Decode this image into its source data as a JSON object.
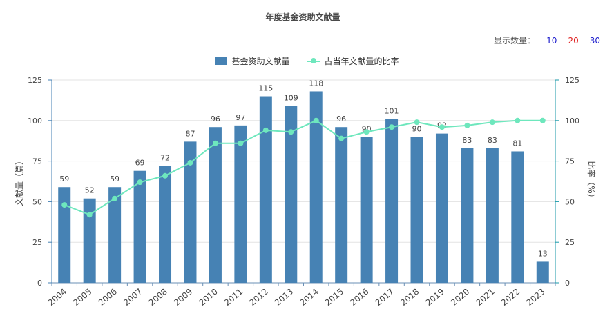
{
  "title": "年度基金资助文献量",
  "display_count": {
    "label": "显示数量：",
    "options": [
      {
        "label": "10",
        "color": "#1c1ccc"
      },
      {
        "label": "20",
        "color": "#e02020"
      },
      {
        "label": "30",
        "color": "#1c1ccc"
      }
    ]
  },
  "legend": {
    "bar_label": "基金资助文献量",
    "line_label": "占当年文献量的比率"
  },
  "colors": {
    "bar": "#4682b4",
    "line": "#6ee7bd",
    "axis_left": "#4682b4",
    "axis_right": "#1b9aaa",
    "grid": "#e3e3e3"
  },
  "chart_data": {
    "type": "bar",
    "title": "年度基金资助文献量",
    "categories": [
      "2004",
      "2005",
      "2006",
      "2007",
      "2008",
      "2009",
      "2010",
      "2011",
      "2012",
      "2013",
      "2014",
      "2015",
      "2016",
      "2017",
      "2018",
      "2019",
      "2020",
      "2021",
      "2022",
      "2023"
    ],
    "series": [
      {
        "name": "基金资助文献量",
        "type": "bar",
        "values": [
          59,
          52,
          59,
          69,
          72,
          87,
          96,
          97,
          115,
          109,
          118,
          96,
          90,
          101,
          90,
          92,
          83,
          83,
          81,
          13
        ]
      },
      {
        "name": "占当年文献量的比率",
        "type": "line",
        "values": [
          48,
          42,
          52,
          62,
          66,
          74,
          86,
          86,
          94,
          93,
          100,
          89,
          93,
          96,
          99,
          96,
          97,
          99,
          100,
          100
        ]
      }
    ],
    "ylabel": "文献量（篇）",
    "y2label": "比率（%）",
    "ylim": [
      0,
      125
    ],
    "y2lim": [
      0,
      125
    ],
    "yticks": [
      0,
      25,
      50,
      75,
      100,
      125
    ],
    "y2ticks": [
      0,
      25,
      50,
      75,
      100,
      125
    ],
    "grid": true,
    "legend_position": "top"
  }
}
